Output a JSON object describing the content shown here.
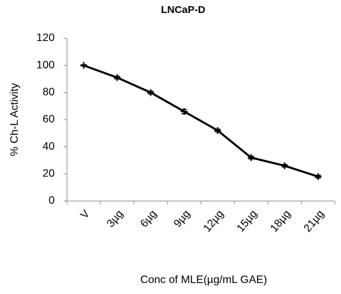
{
  "chart_data": {
    "type": "line",
    "title": "LNCaP-D",
    "x_label": "Conc of MLE(µg/mL GAE)",
    "y_label": "% Ch-L Activity",
    "categories": [
      "V",
      "3µg",
      "6µg",
      "9µg",
      "12µg",
      "15µg",
      "18µg",
      "21µg"
    ],
    "values": [
      100,
      91,
      80,
      66,
      52,
      32,
      26,
      18
    ],
    "errors": [
      0.5,
      1,
      1,
      1.5,
      1,
      1,
      1,
      1
    ],
    "color": "#000000",
    "ylim": [
      0,
      120
    ],
    "yticks": [
      0,
      20,
      40,
      60,
      80,
      100,
      120
    ],
    "grid": false
  }
}
